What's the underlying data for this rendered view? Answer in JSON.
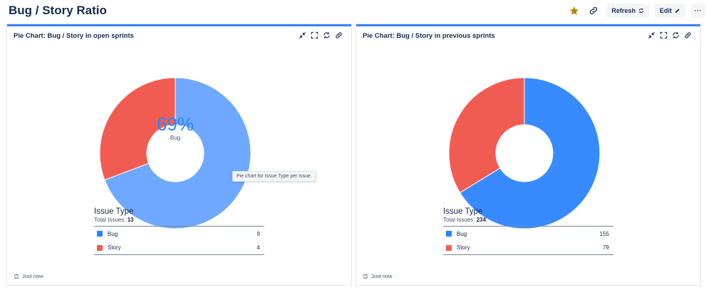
{
  "page": {
    "title": "Bug / Story Ratio",
    "actions": {
      "refresh_label": "Refresh",
      "edit_label": "Edit",
      "more_label": "···"
    }
  },
  "gadgets": [
    {
      "title": "Pie Chart: Bug / Story in open sprints",
      "center_percent": "69%",
      "center_label": "Bug",
      "tooltip": "Pie chart for Issue Type per issue.",
      "legend_title": "Issue Type",
      "total_label": "Total Issues:",
      "total": "13",
      "refreshed": "Just now"
    },
    {
      "title": "Pie Chart: Bug / Story in previous sprints",
      "legend_title": "Issue Type",
      "total_label": "Total Issues:",
      "total": "234",
      "refreshed": "Just now"
    }
  ],
  "chart_data": [
    {
      "type": "pie",
      "title": "Pie Chart: Bug / Story in open sprints",
      "categories": [
        "Bug",
        "Story"
      ],
      "values": [
        9,
        4
      ],
      "colors": [
        "#6fa8ff",
        "#f15c52"
      ],
      "legend_colors": [
        "#2684ff",
        "#f15c52"
      ]
    },
    {
      "type": "pie",
      "title": "Pie Chart: Bug / Story in previous sprints",
      "categories": [
        "Bug",
        "Story"
      ],
      "values": [
        155,
        79
      ],
      "colors": [
        "#388bff",
        "#f15c52"
      ],
      "legend_colors": [
        "#2684ff",
        "#f15c52"
      ]
    }
  ],
  "icons": [
    "star-icon",
    "link-icon",
    "refresh-icon",
    "pencil-icon",
    "minimize-icon",
    "fullscreen-icon",
    "refresh-icon",
    "link-icon"
  ]
}
